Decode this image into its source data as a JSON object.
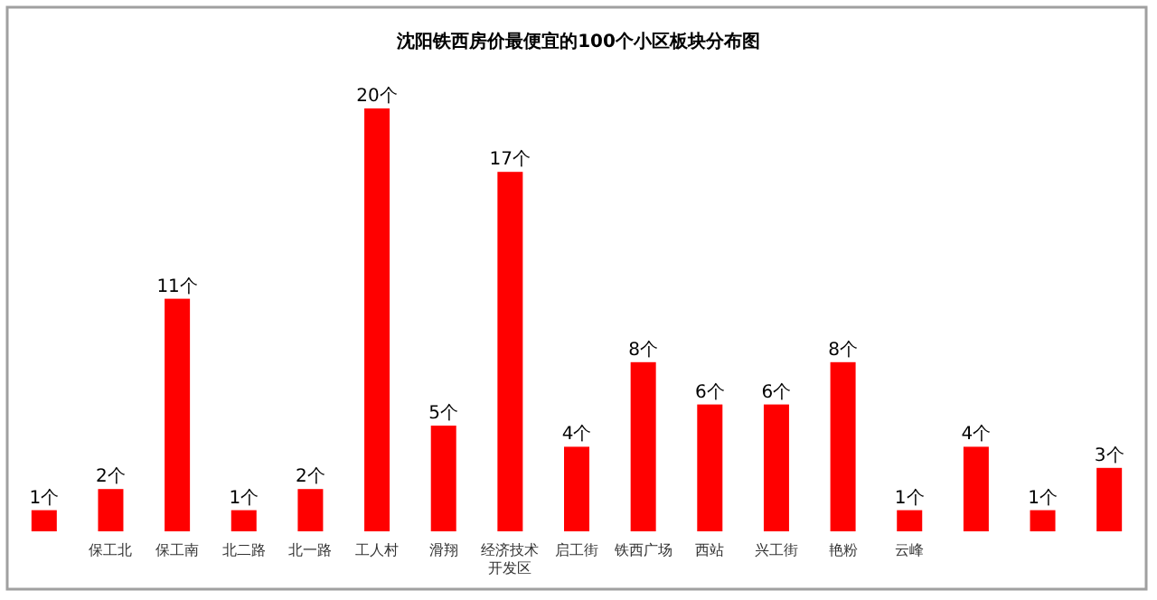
{
  "chart_data": {
    "type": "bar",
    "title": "沈阳铁西房价最便宜的100个小区板块分布图",
    "categories": [
      null,
      "保工北",
      "保工南",
      "北二路",
      "北一路",
      "工人村",
      "滑翔",
      "经济技术开发区",
      "启工街",
      "铁西广场",
      "西站",
      "兴工街",
      "艳粉",
      "云峰",
      null,
      null,
      null
    ],
    "values": [
      1,
      2,
      11,
      1,
      2,
      20,
      5,
      17,
      4,
      8,
      6,
      6,
      8,
      1,
      4,
      1,
      3
    ],
    "value_labels": [
      "1个",
      "2个",
      "11个",
      "1个",
      "2个",
      "20个",
      "5个",
      "17个",
      "4个",
      "8个",
      "6个",
      "6个",
      "8个",
      "1个",
      "4个",
      "1个",
      "3个"
    ],
    "color": "#ff0000"
  }
}
